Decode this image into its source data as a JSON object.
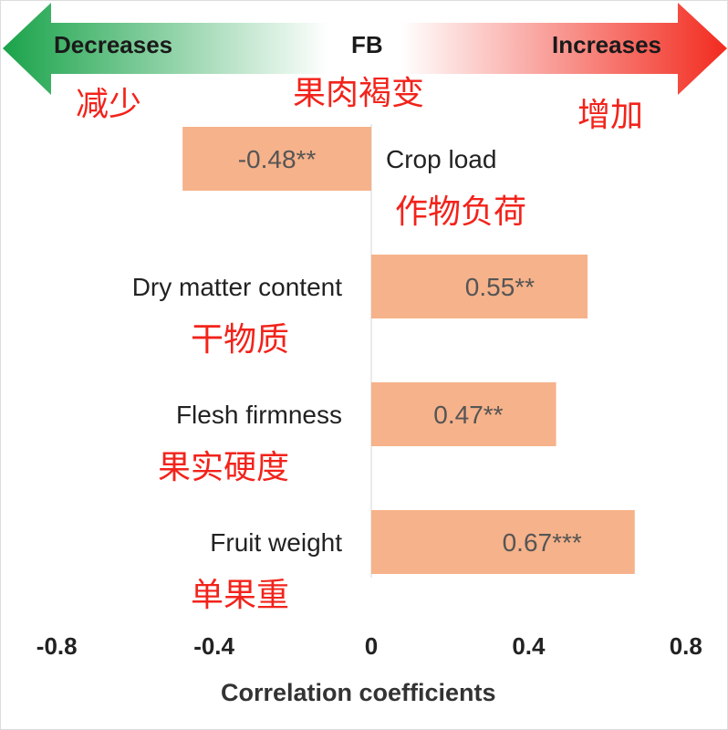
{
  "chart_data": {
    "type": "bar",
    "orientation": "horizontal",
    "title": "FB",
    "title_cn": "果肉褐变",
    "arrow_left": {
      "label": "Decreases",
      "label_cn": "减少"
    },
    "arrow_right": {
      "label": "Increases",
      "label_cn": "增加"
    },
    "categories": [
      "Crop load",
      "Dry matter content",
      "Flesh firmness",
      "Fruit weight"
    ],
    "categories_cn": [
      "作物负荷",
      "干物质",
      "果实硬度",
      "单果重"
    ],
    "values": [
      -0.48,
      0.55,
      0.47,
      0.67
    ],
    "value_labels": [
      "-0.48**",
      "0.55**",
      "0.47**",
      "0.67***"
    ],
    "xlabel": "Correlation coefficients",
    "xlim": [
      -0.8,
      0.8
    ],
    "xticks": [
      "-0.8",
      "-0.4",
      "0",
      "0.4",
      "0.8"
    ],
    "xtick_values": [
      -0.8,
      -0.4,
      0,
      0.4,
      0.8
    ],
    "bar_color": "#f6b28a",
    "colors": {
      "decrease": "#1aa34a",
      "increase": "#f22b1f",
      "cn_text": "#f2231b"
    }
  }
}
